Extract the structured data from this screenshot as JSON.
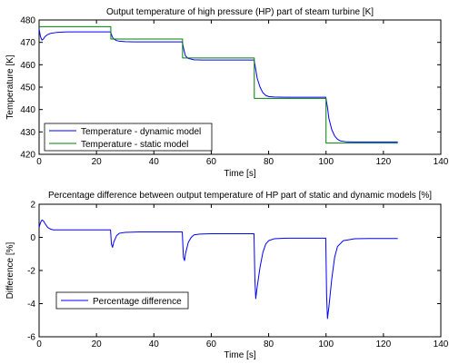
{
  "chart_data": [
    {
      "type": "line",
      "title": "Output temperature of high pressure (HP) part of steam turbine [K]",
      "xlabel": "Time [s]",
      "ylabel": "Temperature [K]",
      "xlim": [
        0,
        140
      ],
      "ylim": [
        420,
        480
      ],
      "xticks": [
        0,
        20,
        40,
        60,
        80,
        100,
        120,
        140
      ],
      "yticks": [
        420,
        430,
        440,
        450,
        460,
        470,
        480
      ],
      "grid": false,
      "legend_position": "bottom-left",
      "series": [
        {
          "name": "Temperature - dynamic model",
          "color": "#0000ff",
          "x": [
            0,
            0.5,
            1,
            1.5,
            2,
            3,
            4,
            6,
            8,
            10,
            14,
            18,
            22,
            24.9,
            25.5,
            26,
            27,
            28,
            30,
            33,
            37,
            42,
            46,
            49.9,
            50.5,
            51,
            52,
            54,
            57,
            62,
            68,
            74.9,
            75.5,
            76,
            77,
            78,
            79,
            80,
            82,
            86,
            92,
            99.9,
            100.5,
            101,
            102,
            103,
            104,
            105,
            107,
            110,
            115,
            120,
            125
          ],
          "y": [
            476,
            472.5,
            471,
            471.5,
            472.5,
            473.5,
            474,
            474.4,
            474.6,
            474.7,
            474.7,
            474.7,
            474.7,
            474.7,
            472.5,
            471.5,
            470.8,
            470.5,
            470.3,
            470.2,
            470.2,
            470.2,
            470.2,
            470.2,
            466.5,
            464,
            462.8,
            462.2,
            462.1,
            462.1,
            462.1,
            462.1,
            458,
            454,
            450,
            447.5,
            446.3,
            445.8,
            445.6,
            445.5,
            445.5,
            445.5,
            441,
            436,
            431,
            428.2,
            426.7,
            426,
            425.6,
            425.5,
            425.5,
            425.5,
            425.5
          ]
        },
        {
          "name": "Temperature - static model",
          "color": "#008000",
          "x": [
            0,
            25,
            25,
            50,
            50,
            75,
            75,
            100,
            100,
            125
          ],
          "y": [
            477,
            477,
            471.5,
            471.5,
            463,
            463,
            445,
            445,
            425,
            425
          ]
        }
      ]
    },
    {
      "type": "line",
      "title": "Percentage difference between output temperature of HP part of static and dynamic models [%]",
      "xlabel": "Time [s]",
      "ylabel": "Difference [%]",
      "xlim": [
        0,
        140
      ],
      "ylim": [
        -6,
        2
      ],
      "xticks": [
        0,
        20,
        40,
        60,
        80,
        100,
        120,
        140
      ],
      "yticks": [
        -6,
        -4,
        -2,
        0,
        2
      ],
      "grid": false,
      "legend_position": "bottom-left",
      "series": [
        {
          "name": "Percentage difference",
          "color": "#0000ff",
          "x": [
            0,
            0.5,
            1,
            1.5,
            2,
            3,
            4,
            5,
            6,
            8,
            10,
            15,
            20,
            24.9,
            25.2,
            25.6,
            26,
            27,
            28,
            30,
            35,
            40,
            45,
            49.9,
            50.3,
            50.7,
            51,
            52,
            53,
            54,
            56,
            60,
            65,
            70,
            74.9,
            75.2,
            75.5,
            76,
            77,
            78,
            79,
            80,
            82,
            86,
            92,
            99.9,
            100.2,
            100.5,
            101,
            102,
            103,
            104,
            106,
            110,
            115,
            120,
            125
          ],
          "y": [
            0.6,
            0.9,
            1.05,
            1.0,
            0.85,
            0.6,
            0.5,
            0.45,
            0.45,
            0.45,
            0.45,
            0.45,
            0.45,
            0.45,
            -0.4,
            -0.6,
            -0.3,
            0.1,
            0.25,
            0.3,
            0.33,
            0.33,
            0.33,
            0.33,
            -1.2,
            -1.4,
            -1.0,
            -0.3,
            0.0,
            0.15,
            0.2,
            0.22,
            0.22,
            0.22,
            0.22,
            -2.5,
            -3.7,
            -3.0,
            -1.8,
            -0.9,
            -0.4,
            -0.2,
            -0.08,
            -0.05,
            -0.05,
            -0.05,
            -3.5,
            -4.9,
            -4.2,
            -2.5,
            -1.2,
            -0.55,
            -0.2,
            -0.08,
            -0.07,
            -0.07,
            -0.07
          ]
        }
      ]
    }
  ]
}
